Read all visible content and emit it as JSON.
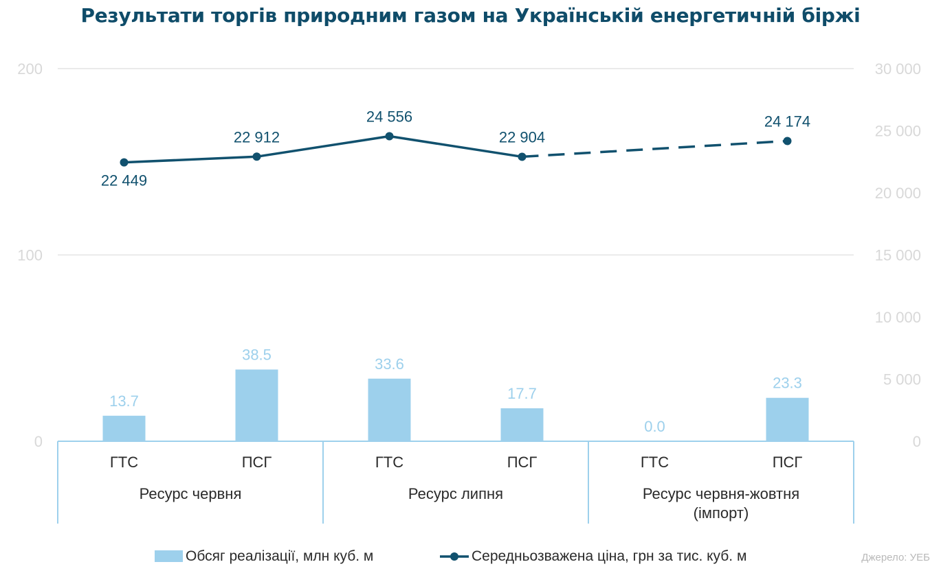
{
  "title": "Результати торгів природним газом на Українській енергетичній біржі",
  "source": "Джерело: УЕБ",
  "colors": {
    "bar": "#9dd0ec",
    "line": "#11516e",
    "axis_text": "#d8d8d8",
    "grid": "#e4e4e4",
    "axis_line": "#9dd0ec",
    "bar_label": "#9dd0ec",
    "text": "#2a2a2a"
  },
  "chart_data": {
    "type": "bar",
    "categories": [
      "ГТС",
      "ПСГ",
      "ГТС",
      "ПСГ",
      "ГТС",
      "ПСГ"
    ],
    "groups": [
      {
        "label": "Ресурс червня",
        "span": 2
      },
      {
        "label": "Ресурс липня",
        "span": 2
      },
      {
        "label": "Ресурс червня-жовтня (імпорт)",
        "span": 2
      }
    ],
    "y_left": {
      "ylim": [
        0,
        200
      ],
      "ticks": [
        0,
        100,
        200
      ],
      "tick_labels": [
        "0",
        "100",
        "200"
      ]
    },
    "y_right": {
      "ylim": [
        0,
        30000
      ],
      "ticks": [
        0,
        5000,
        10000,
        15000,
        20000,
        25000,
        30000
      ],
      "tick_labels": [
        "0",
        "5 000",
        "10 000",
        "15 000",
        "20 000",
        "25 000",
        "30 000"
      ]
    },
    "grid": true,
    "legend_position": "bottom",
    "series": [
      {
        "name": "Обсяг реалізації, млн куб. м",
        "type": "bar",
        "axis": "left",
        "values": [
          13.7,
          38.5,
          33.6,
          17.7,
          0.0,
          23.3
        ],
        "labels": [
          "13.7",
          "38.5",
          "33.6",
          "17.7",
          "0.0",
          "23.3"
        ]
      },
      {
        "name": "Середньозважена ціна, грн за тис. куб. м",
        "type": "line",
        "axis": "right",
        "points": [
          {
            "index": 0,
            "value": 22449,
            "label": "22 449"
          },
          {
            "index": 1,
            "value": 22912,
            "label": "22 912"
          },
          {
            "index": 2,
            "value": 24556,
            "label": "24 556"
          },
          {
            "index": 3,
            "value": 22904,
            "label": "22 904"
          },
          {
            "index": 5,
            "value": 24174,
            "label": "24 174"
          }
        ],
        "dashed_from_index": 3
      }
    ]
  }
}
